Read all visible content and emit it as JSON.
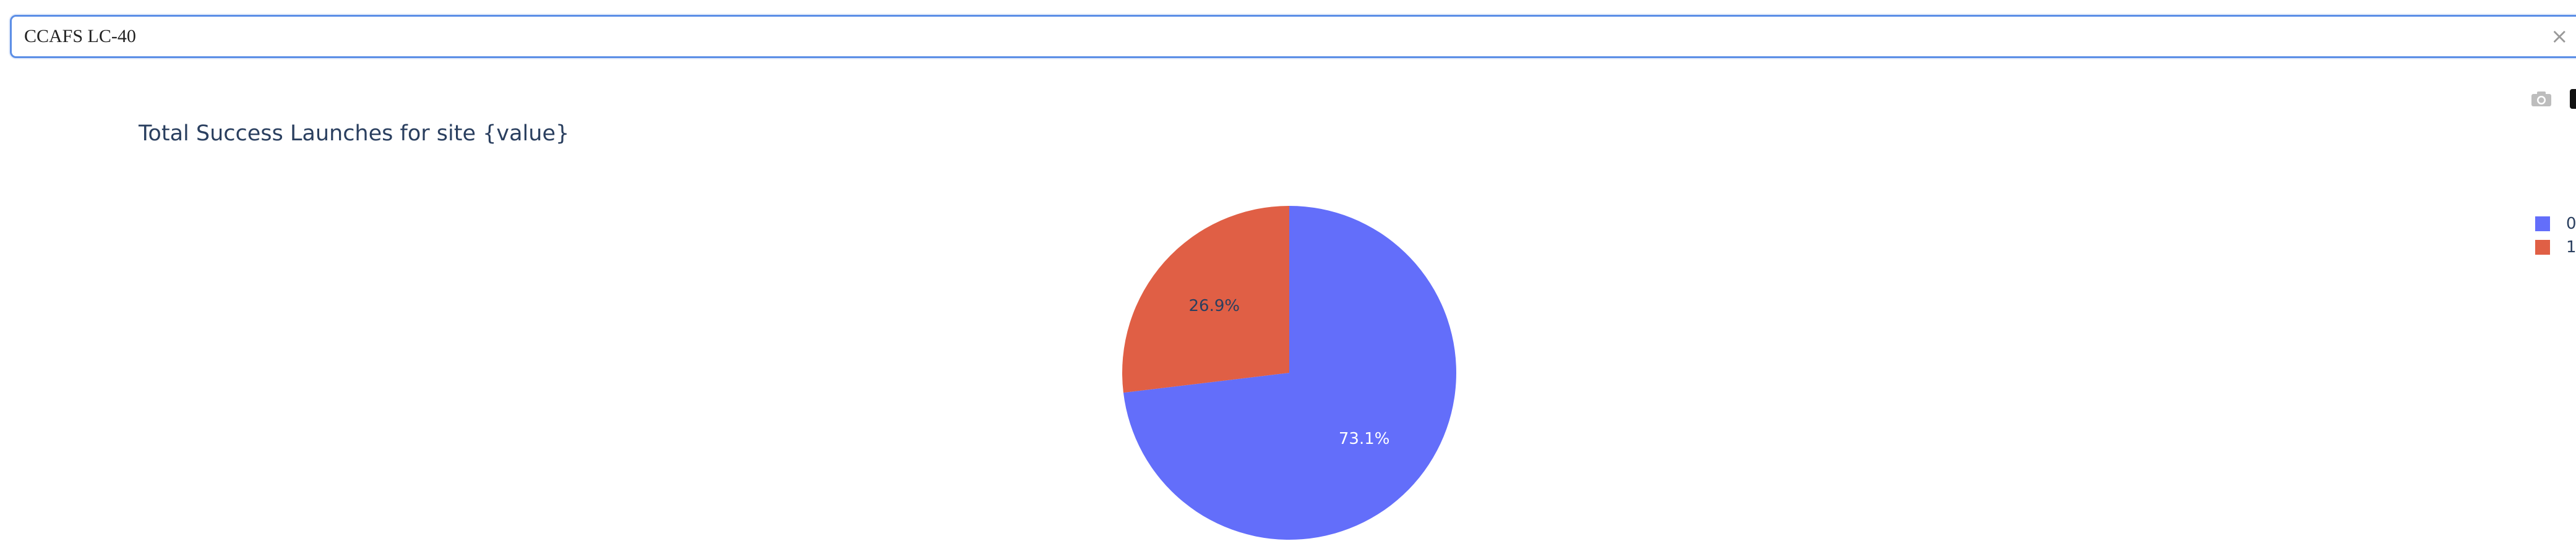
{
  "dropdown": {
    "value": "CCAFS LC-40",
    "clear_symbol": "×",
    "arrow_icon": "chevron-down-icon"
  },
  "modebar": {
    "camera_icon": "camera-icon",
    "logo_icon": "plotly-logo-icon"
  },
  "colors": {
    "slice_0": "#636efa",
    "slice_1": "#e05f45",
    "title": "#2a3f5f",
    "focus_border": "#5b8ee6"
  },
  "chart_data": {
    "type": "pie",
    "title": "Total Success Launches for site {value}",
    "labels": [
      "0",
      "1"
    ],
    "values": [
      73.1,
      26.9
    ],
    "text_labels": [
      "73.1%",
      "26.9%"
    ],
    "legend_position": "top-right",
    "start_angle_deg": 90,
    "direction": "clockwise"
  }
}
